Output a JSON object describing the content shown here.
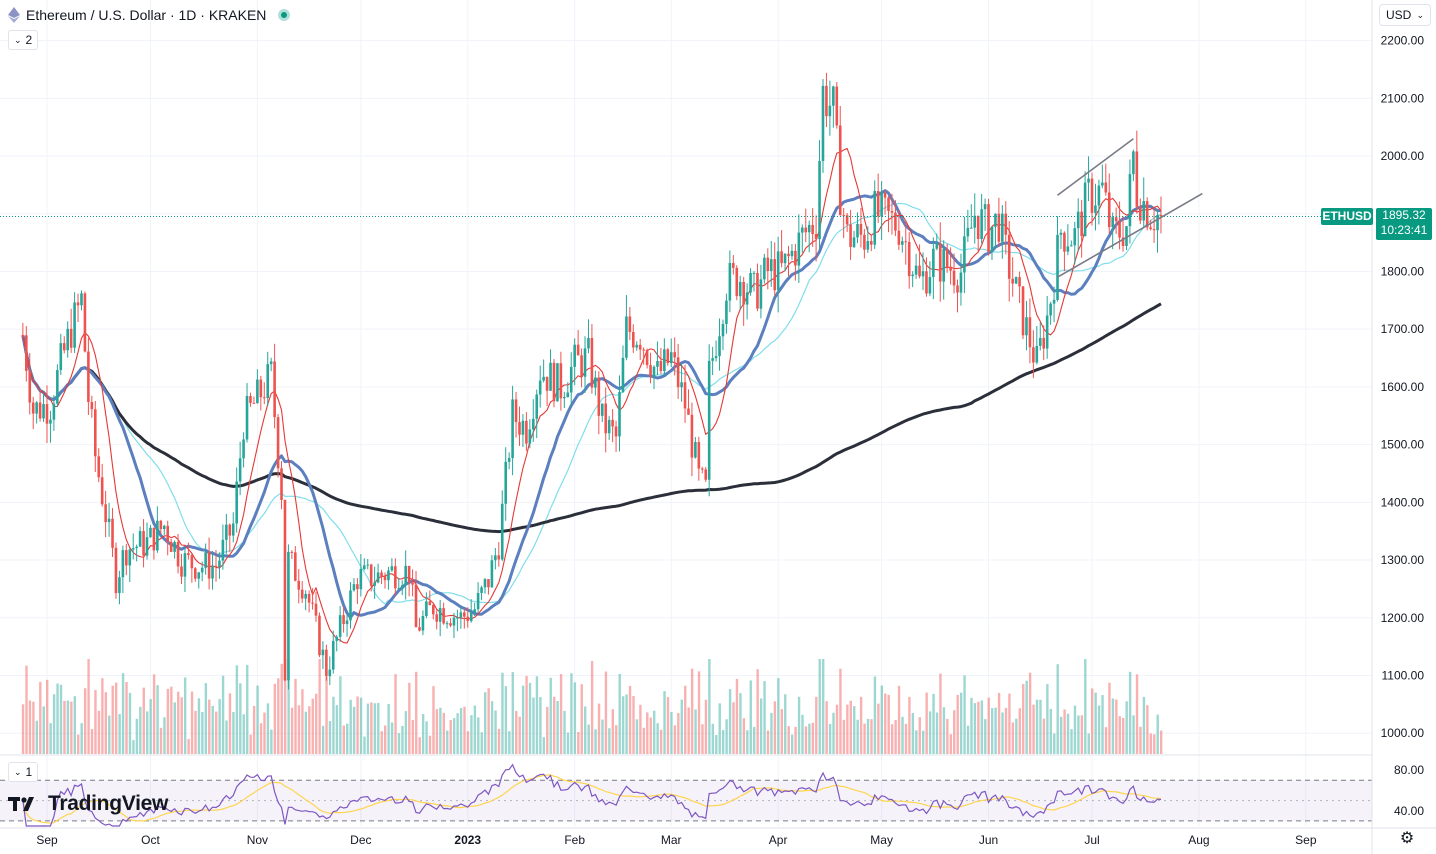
{
  "header": {
    "symbol_title": "Ethereum / U.S. Dollar · 1D · KRAKEN",
    "indicators_count": "2",
    "rsi_count": "1"
  },
  "currency_label": "USD",
  "price_label": {
    "symbol": "ETHUSD",
    "price": "1895.32",
    "countdown": "10:23:41"
  },
  "logo_text": "TradingView",
  "colors": {
    "up": "#26a69a",
    "down": "#ef5350",
    "last_price": "#089981",
    "ma_short": "#e53935",
    "ma_mid": "#5b7fbf",
    "ma_cyan": "#80deea",
    "ma_long": "#2b2f3a",
    "rsi": "#7e57c2",
    "rsi_ma": "#ffd54f"
  },
  "chart_data": {
    "type": "candlestick",
    "title": "Ethereum / U.S. Dollar · 1D · KRAKEN",
    "y_ticks": [
      "2200.00",
      "2100.00",
      "2000.00",
      "1900.00",
      "1800.00",
      "1700.00",
      "1600.00",
      "1500.00",
      "1400.00",
      "1300.00",
      "1200.00",
      "1100.00",
      "1000.00"
    ],
    "x_ticks": [
      "Sep",
      "Oct",
      "Nov",
      "Dec",
      "2023",
      "Feb",
      "Mar",
      "Apr",
      "May",
      "Jun",
      "Jul",
      "Aug",
      "Sep"
    ],
    "ylim": [
      975,
      2215
    ],
    "last_price": 1895.32,
    "close_anchors": [
      [
        "2022-08-25",
        1690
      ],
      [
        "2022-08-28",
        1560
      ],
      [
        "2022-09-02",
        1570
      ],
      [
        "2022-09-05",
        1640
      ],
      [
        "2022-09-08",
        1700
      ],
      [
        "2022-09-11",
        1750
      ],
      [
        "2022-09-13",
        1580
      ],
      [
        "2022-09-15",
        1480
      ],
      [
        "2022-09-18",
        1380
      ],
      [
        "2022-09-21",
        1270
      ],
      [
        "2022-09-24",
        1320
      ],
      [
        "2022-09-30",
        1330
      ],
      [
        "2022-10-05",
        1360
      ],
      [
        "2022-10-10",
        1300
      ],
      [
        "2022-10-15",
        1290
      ],
      [
        "2022-10-20",
        1290
      ],
      [
        "2022-10-25",
        1360
      ],
      [
        "2022-10-28",
        1540
      ],
      [
        "2022-11-01",
        1580
      ],
      [
        "2022-11-05",
        1620
      ],
      [
        "2022-11-08",
        1420
      ],
      [
        "2022-11-09",
        1100
      ],
      [
        "2022-11-10",
        1300
      ],
      [
        "2022-11-15",
        1250
      ],
      [
        "2022-11-21",
        1110
      ],
      [
        "2022-11-25",
        1180
      ],
      [
        "2022-11-30",
        1270
      ],
      [
        "2022-12-05",
        1270
      ],
      [
        "2022-12-10",
        1280
      ],
      [
        "2022-12-15",
        1280
      ],
      [
        "2022-12-17",
        1180
      ],
      [
        "2022-12-22",
        1220
      ],
      [
        "2022-12-30",
        1200
      ],
      [
        "2023-01-03",
        1215
      ],
      [
        "2023-01-07",
        1265
      ],
      [
        "2023-01-10",
        1330
      ],
      [
        "2023-01-14",
        1550
      ],
      [
        "2023-01-18",
        1530
      ],
      [
        "2023-01-22",
        1630
      ],
      [
        "2023-01-28",
        1600
      ],
      [
        "2023-02-01",
        1640
      ],
      [
        "2023-02-05",
        1650
      ],
      [
        "2023-02-09",
        1540
      ],
      [
        "2023-02-13",
        1510
      ],
      [
        "2023-02-16",
        1700
      ],
      [
        "2023-02-20",
        1690
      ],
      [
        "2023-02-25",
        1620
      ],
      [
        "2023-03-01",
        1650
      ],
      [
        "2023-03-05",
        1570
      ],
      [
        "2023-03-09",
        1440
      ],
      [
        "2023-03-11",
        1420
      ],
      [
        "2023-03-12",
        1620
      ],
      [
        "2023-03-17",
        1780
      ],
      [
        "2023-03-21",
        1790
      ],
      [
        "2023-03-25",
        1760
      ],
      [
        "2023-03-29",
        1800
      ],
      [
        "2023-04-02",
        1800
      ],
      [
        "2023-04-08",
        1860
      ],
      [
        "2023-04-12",
        1890
      ],
      [
        "2023-04-14",
        2110
      ],
      [
        "2023-04-17",
        2080
      ],
      [
        "2023-04-19",
        1940
      ],
      [
        "2023-04-21",
        1860
      ],
      [
        "2023-04-26",
        1860
      ],
      [
        "2023-04-29",
        1900
      ],
      [
        "2023-05-03",
        1890
      ],
      [
        "2023-05-06",
        1880
      ],
      [
        "2023-05-08",
        1850
      ],
      [
        "2023-05-12",
        1780
      ],
      [
        "2023-05-16",
        1820
      ],
      [
        "2023-05-20",
        1810
      ],
      [
        "2023-05-24",
        1800
      ],
      [
        "2023-05-28",
        1900
      ],
      [
        "2023-06-01",
        1870
      ],
      [
        "2023-06-04",
        1890
      ],
      [
        "2023-06-06",
        1830
      ],
      [
        "2023-06-10",
        1740
      ],
      [
        "2023-06-15",
        1640
      ],
      [
        "2023-06-18",
        1720
      ],
      [
        "2023-06-20",
        1790
      ],
      [
        "2023-06-22",
        1870
      ],
      [
        "2023-06-26",
        1860
      ],
      [
        "2023-06-30",
        1930
      ],
      [
        "2023-07-04",
        1940
      ],
      [
        "2023-07-07",
        1860
      ],
      [
        "2023-07-11",
        1880
      ],
      [
        "2023-07-13",
        2000
      ],
      [
        "2023-07-14",
        1940
      ],
      [
        "2023-07-18",
        1900
      ],
      [
        "2023-07-21",
        1895
      ]
    ],
    "trendlines": [
      {
        "from": [
          "2023-06-21",
          1932
        ],
        "to": [
          "2023-07-13",
          2030
        ]
      },
      {
        "from": [
          "2023-06-21",
          1790
        ],
        "to": [
          "2023-08-02",
          1935
        ]
      }
    ],
    "rsi": {
      "ticks": [
        "80.00",
        "40.00"
      ],
      "ylim": [
        25,
        90
      ],
      "overbought": 70,
      "oversold": 30
    }
  }
}
